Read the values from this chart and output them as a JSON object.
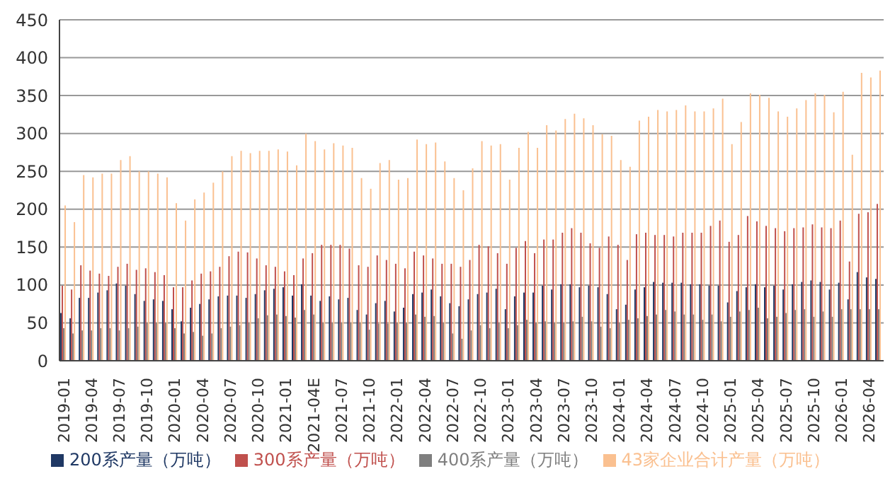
{
  "chart_data": {
    "type": "bar",
    "categories": [
      "2019-01",
      null,
      null,
      "2019-04",
      null,
      null,
      "2019-07",
      null,
      null,
      "2019-10",
      null,
      null,
      "2020-01",
      null,
      null,
      "2020-04",
      null,
      null,
      "2020-07",
      null,
      null,
      "2020-10",
      null,
      null,
      "2021-01",
      null,
      null,
      "2021-04E",
      null,
      null,
      "2021-07",
      null,
      null,
      "2021-10",
      null,
      null,
      "2022-01",
      null,
      null,
      "2022-04",
      null,
      null,
      "2022-07",
      null,
      null,
      "2022-10",
      null,
      null,
      "2023-01",
      null,
      null,
      "2023-04",
      null,
      null,
      "2023-07",
      null,
      null,
      "2023-10",
      null,
      null,
      "2024-01",
      null,
      null,
      "2024-04",
      null,
      null,
      "2024-07",
      null,
      null,
      "2024-10",
      null,
      null,
      "2025-01",
      null,
      null,
      "2025-04",
      null,
      null,
      "2025-07",
      null,
      null,
      "2025-10",
      null,
      null,
      "2026-01",
      null,
      null,
      "2026-04",
      null
    ],
    "series": [
      {
        "name": "200系产量（万吨）",
        "color": "#1f3864",
        "values": [
          63,
          56,
          83,
          83,
          90,
          93,
          102,
          99,
          88,
          79,
          81,
          79,
          68,
          52,
          70,
          75,
          81,
          85,
          86,
          86,
          83,
          88,
          93,
          95,
          97,
          86,
          101,
          86,
          79,
          85,
          81,
          83,
          67,
          61,
          76,
          79,
          65,
          70,
          88,
          90,
          94,
          85,
          76,
          72,
          81,
          88,
          90,
          95,
          68,
          85,
          90,
          90,
          99,
          94,
          101,
          101,
          97,
          99,
          97,
          88,
          68,
          74,
          94,
          97,
          104,
          103,
          103,
          103,
          101,
          101,
          99,
          99,
          77,
          92,
          97,
          101,
          97,
          99,
          94,
          101,
          104,
          106,
          104,
          94,
          103,
          81,
          117,
          110,
          108
        ]
      },
      {
        "name": "300系产量（万吨）",
        "color": "#c0504d",
        "values": [
          99,
          94,
          126,
          119,
          115,
          112,
          124,
          128,
          120,
          122,
          117,
          113,
          97,
          97,
          106,
          115,
          118,
          124,
          138,
          144,
          143,
          135,
          126,
          124,
          118,
          113,
          135,
          142,
          153,
          153,
          153,
          148,
          126,
          124,
          139,
          133,
          128,
          122,
          144,
          139,
          135,
          128,
          128,
          124,
          133,
          153,
          151,
          142,
          128,
          149,
          158,
          142,
          160,
          160,
          169,
          175,
          169,
          155,
          149,
          164,
          153,
          133,
          167,
          169,
          166,
          166,
          164,
          169,
          169,
          169,
          178,
          185,
          157,
          166,
          191,
          184,
          178,
          175,
          171,
          175,
          176,
          180,
          176,
          175,
          185,
          131,
          194,
          196,
          207
        ]
      },
      {
        "name": "400系产量（万吨）",
        "color": "#7f7f7f",
        "values": [
          43,
          36,
          40,
          40,
          43,
          43,
          40,
          43,
          45,
          50,
          50,
          50,
          43,
          36,
          38,
          33,
          36,
          43,
          45,
          47,
          50,
          56,
          60,
          61,
          59,
          57,
          67,
          61,
          50,
          50,
          50,
          50,
          50,
          41,
          49,
          49,
          50,
          50,
          61,
          58,
          59,
          50,
          36,
          29,
          40,
          47,
          43,
          50,
          43,
          47,
          54,
          50,
          52,
          50,
          50,
          52,
          58,
          52,
          45,
          43,
          50,
          54,
          56,
          59,
          61,
          67,
          65,
          61,
          61,
          54,
          61,
          52,
          58,
          65,
          67,
          70,
          56,
          58,
          63,
          67,
          68,
          58,
          65,
          58,
          68,
          68,
          68,
          68,
          68
        ]
      },
      {
        "name": "43家企业合计产量（万吨）",
        "color": "#fac090",
        "values": [
          205,
          183,
          245,
          242,
          247,
          247,
          265,
          270,
          250,
          250,
          247,
          242,
          208,
          185,
          213,
          222,
          235,
          250,
          270,
          277,
          274,
          277,
          277,
          279,
          276,
          258,
          300,
          290,
          279,
          287,
          284,
          281,
          241,
          227,
          261,
          265,
          239,
          241,
          292,
          286,
          288,
          263,
          241,
          225,
          254,
          290,
          284,
          286,
          239,
          281,
          302,
          281,
          311,
          304,
          319,
          326,
          320,
          311,
          299,
          297,
          265,
          256,
          317,
          322,
          331,
          329,
          331,
          337,
          329,
          329,
          333,
          346,
          286,
          315,
          353,
          351,
          347,
          329,
          322,
          333,
          344,
          353,
          351,
          328,
          355,
          272,
          380,
          374,
          383
        ]
      }
    ],
    "ylim": [
      0,
      450
    ],
    "yticks": [
      0,
      50,
      100,
      150,
      200,
      250,
      300,
      350,
      400,
      450
    ],
    "grid": "y",
    "legend": "bottom"
  }
}
